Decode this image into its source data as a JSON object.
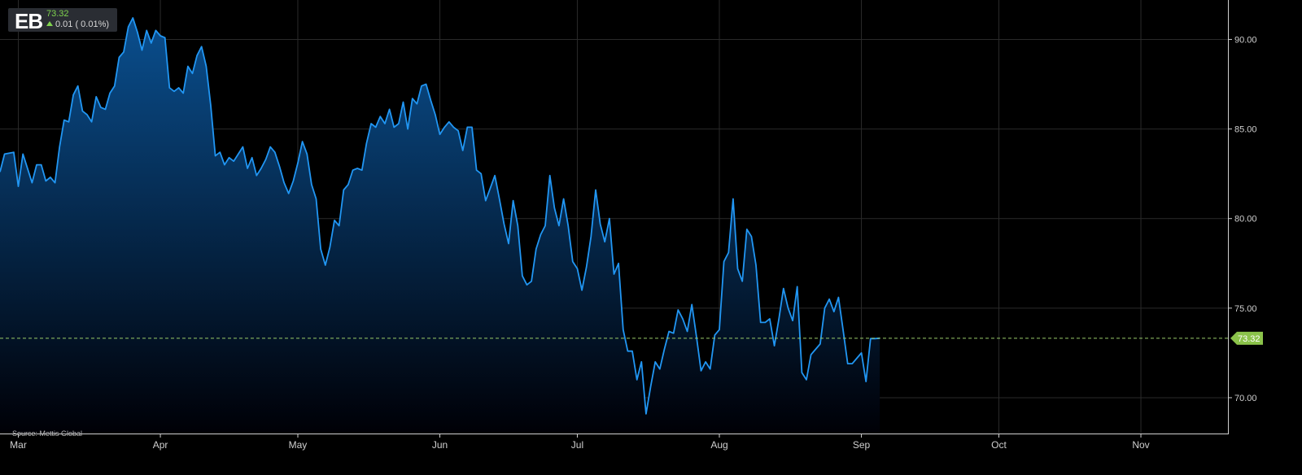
{
  "header": {
    "symbol": "EB",
    "last_price": "73.32",
    "change_text": "0.01 ( 0.01%)"
  },
  "source": "Source: Mettis Global",
  "colors": {
    "background": "#000000",
    "line": "#2196f3",
    "fill_top": "#0a4f8f",
    "fill_bottom": "#000006",
    "grid": "#2a2a2a",
    "up": "#7fd34e",
    "last_tag": "#8bc34a"
  },
  "chart_data": {
    "type": "area",
    "ylim": [
      68,
      92.2
    ],
    "y_ticks": [
      "90.00",
      "85.00",
      "80.00",
      "75.00",
      "70.00"
    ],
    "x_tick_labels": [
      "Mar",
      "Apr",
      "May",
      "Jun",
      "Jul",
      "Aug",
      "Sep",
      "Oct",
      "Nov"
    ],
    "x_tick_days": [
      1,
      32,
      62,
      93,
      123,
      154,
      185,
      215,
      246
    ],
    "x_days_range": [
      -3,
      265
    ],
    "last_value": 73.32,
    "last_value_label": "73.32",
    "grid": true,
    "series": [
      {
        "points": [
          [
            -3,
            82.6
          ],
          [
            -2,
            83.6
          ],
          [
            0,
            83.7
          ],
          [
            1,
            81.8
          ],
          [
            2,
            83.6
          ],
          [
            4,
            82.0
          ],
          [
            5,
            83.0
          ],
          [
            6,
            83.0
          ],
          [
            7,
            82.1
          ],
          [
            8,
            82.3
          ],
          [
            9,
            82.0
          ],
          [
            10,
            84.0
          ],
          [
            11,
            85.5
          ],
          [
            12,
            85.4
          ],
          [
            13,
            86.9
          ],
          [
            14,
            87.4
          ],
          [
            15,
            86.0
          ],
          [
            16,
            85.8
          ],
          [
            17,
            85.4
          ],
          [
            18,
            86.8
          ],
          [
            19,
            86.2
          ],
          [
            20,
            86.1
          ],
          [
            21,
            87.0
          ],
          [
            22,
            87.4
          ],
          [
            23,
            89.0
          ],
          [
            24,
            89.3
          ],
          [
            25,
            90.7
          ],
          [
            26,
            91.2
          ],
          [
            27,
            90.4
          ],
          [
            28,
            89.4
          ],
          [
            29,
            90.5
          ],
          [
            30,
            89.8
          ],
          [
            31,
            90.5
          ],
          [
            32,
            90.2
          ],
          [
            33,
            90.1
          ],
          [
            34,
            87.3
          ],
          [
            35,
            87.1
          ],
          [
            36,
            87.3
          ],
          [
            37,
            87.0
          ],
          [
            38,
            88.5
          ],
          [
            39,
            88.1
          ],
          [
            40,
            89.1
          ],
          [
            41,
            89.6
          ],
          [
            42,
            88.5
          ],
          [
            43,
            86.3
          ],
          [
            44,
            83.5
          ],
          [
            45,
            83.7
          ],
          [
            46,
            83.0
          ],
          [
            47,
            83.4
          ],
          [
            48,
            83.2
          ],
          [
            49,
            83.6
          ],
          [
            50,
            84.0
          ],
          [
            51,
            82.8
          ],
          [
            52,
            83.4
          ],
          [
            53,
            82.4
          ],
          [
            54,
            82.8
          ],
          [
            55,
            83.3
          ],
          [
            56,
            84.0
          ],
          [
            57,
            83.7
          ],
          [
            58,
            82.9
          ],
          [
            59,
            82.0
          ],
          [
            60,
            81.4
          ],
          [
            61,
            82.1
          ],
          [
            62,
            83.1
          ],
          [
            63,
            84.3
          ],
          [
            64,
            83.6
          ],
          [
            65,
            81.9
          ],
          [
            66,
            81.1
          ],
          [
            67,
            78.3
          ],
          [
            68,
            77.4
          ],
          [
            69,
            78.4
          ],
          [
            70,
            79.9
          ],
          [
            71,
            79.6
          ],
          [
            72,
            81.6
          ],
          [
            73,
            81.9
          ],
          [
            74,
            82.7
          ],
          [
            75,
            82.8
          ],
          [
            76,
            82.7
          ],
          [
            77,
            84.2
          ],
          [
            78,
            85.3
          ],
          [
            79,
            85.1
          ],
          [
            80,
            85.7
          ],
          [
            81,
            85.3
          ],
          [
            82,
            86.1
          ],
          [
            83,
            85.1
          ],
          [
            84,
            85.3
          ],
          [
            85,
            86.5
          ],
          [
            86,
            85.0
          ],
          [
            87,
            86.7
          ],
          [
            88,
            86.4
          ],
          [
            89,
            87.4
          ],
          [
            90,
            87.5
          ],
          [
            91,
            86.6
          ],
          [
            92,
            85.8
          ],
          [
            93,
            84.7
          ],
          [
            94,
            85.1
          ],
          [
            95,
            85.4
          ],
          [
            96,
            85.1
          ],
          [
            97,
            84.9
          ],
          [
            98,
            83.8
          ],
          [
            99,
            85.1
          ],
          [
            100,
            85.1
          ],
          [
            101,
            82.7
          ],
          [
            102,
            82.5
          ],
          [
            103,
            81.0
          ],
          [
            104,
            81.7
          ],
          [
            105,
            82.4
          ],
          [
            106,
            81.1
          ],
          [
            107,
            79.7
          ],
          [
            108,
            78.6
          ],
          [
            109,
            81.0
          ],
          [
            110,
            79.6
          ],
          [
            111,
            76.8
          ],
          [
            112,
            76.3
          ],
          [
            113,
            76.5
          ],
          [
            114,
            78.3
          ],
          [
            115,
            79.1
          ],
          [
            116,
            79.6
          ],
          [
            117,
            82.4
          ],
          [
            118,
            80.6
          ],
          [
            119,
            79.6
          ],
          [
            120,
            81.1
          ],
          [
            121,
            79.6
          ],
          [
            122,
            77.6
          ],
          [
            123,
            77.2
          ],
          [
            124,
            76.0
          ],
          [
            125,
            77.3
          ],
          [
            126,
            79.0
          ],
          [
            127,
            81.6
          ],
          [
            128,
            79.7
          ],
          [
            129,
            78.7
          ],
          [
            130,
            80.0
          ],
          [
            131,
            76.9
          ],
          [
            132,
            77.5
          ],
          [
            133,
            73.8
          ],
          [
            134,
            72.6
          ],
          [
            135,
            72.6
          ],
          [
            136,
            71.0
          ],
          [
            137,
            72.0
          ],
          [
            138,
            69.1
          ],
          [
            139,
            70.6
          ],
          [
            140,
            72.0
          ],
          [
            141,
            71.6
          ],
          [
            142,
            72.7
          ],
          [
            143,
            73.7
          ],
          [
            144,
            73.6
          ],
          [
            145,
            74.9
          ],
          [
            146,
            74.4
          ],
          [
            147,
            73.7
          ],
          [
            148,
            75.2
          ],
          [
            149,
            73.4
          ],
          [
            150,
            71.5
          ],
          [
            151,
            72.0
          ],
          [
            152,
            71.6
          ],
          [
            153,
            73.5
          ],
          [
            154,
            73.8
          ],
          [
            155,
            77.6
          ],
          [
            156,
            78.1
          ],
          [
            157,
            81.1
          ],
          [
            158,
            77.2
          ],
          [
            159,
            76.5
          ],
          [
            160,
            79.4
          ],
          [
            161,
            79.0
          ],
          [
            162,
            77.4
          ],
          [
            163,
            74.2
          ],
          [
            164,
            74.2
          ],
          [
            165,
            74.4
          ],
          [
            166,
            72.9
          ],
          [
            167,
            74.4
          ],
          [
            168,
            76.1
          ],
          [
            169,
            75.0
          ],
          [
            170,
            74.3
          ],
          [
            171,
            76.2
          ],
          [
            172,
            71.4
          ],
          [
            173,
            71.0
          ],
          [
            174,
            72.4
          ],
          [
            175,
            72.7
          ],
          [
            176,
            73.0
          ],
          [
            177,
            75.0
          ],
          [
            178,
            75.5
          ],
          [
            179,
            74.8
          ],
          [
            180,
            75.6
          ],
          [
            181,
            73.8
          ],
          [
            182,
            71.9
          ],
          [
            183,
            71.9
          ],
          [
            184,
            72.2
          ],
          [
            185,
            72.5
          ],
          [
            186,
            70.9
          ],
          [
            187,
            73.3
          ],
          [
            188,
            73.3
          ],
          [
            189,
            73.32
          ]
        ]
      }
    ]
  }
}
